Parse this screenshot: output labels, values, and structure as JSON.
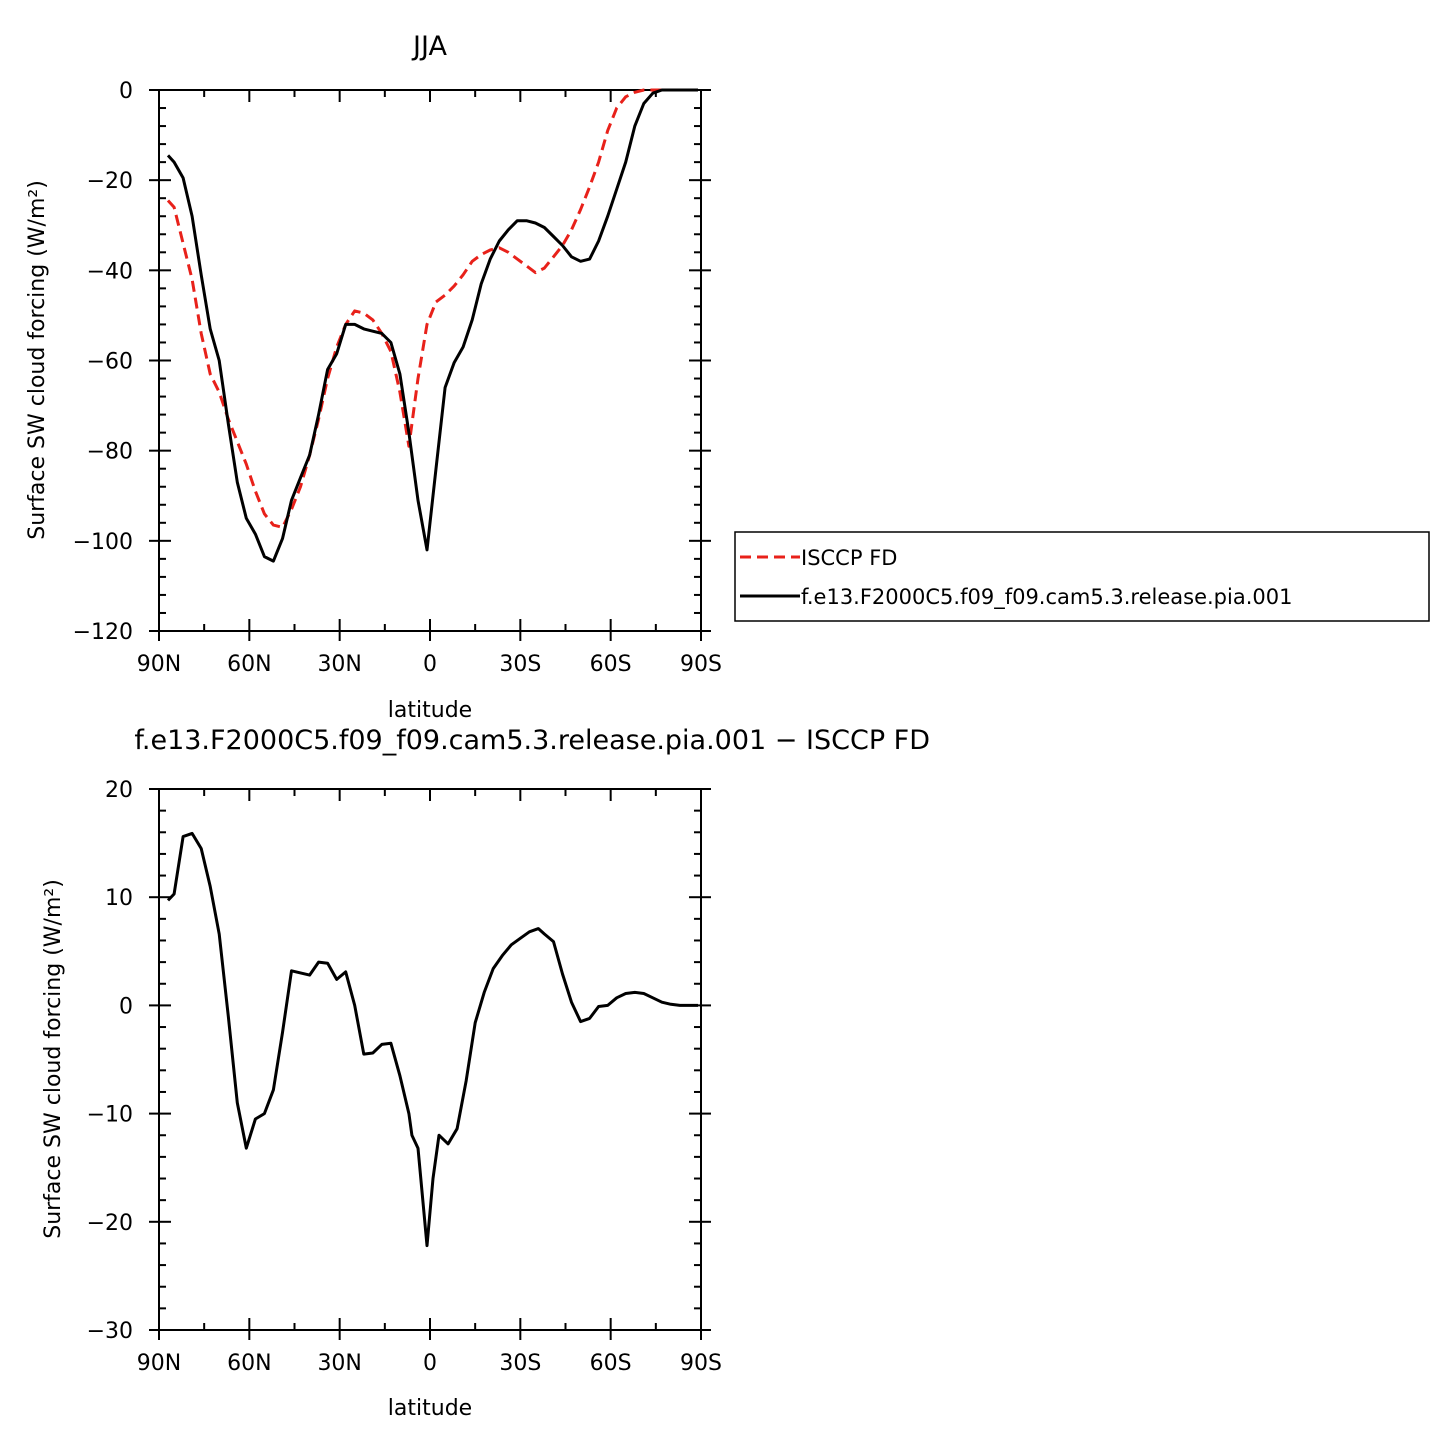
{
  "chart_data": [
    {
      "type": "line",
      "title": "JJA",
      "xlabel": "latitude",
      "ylabel": "Surface SW cloud forcing (W/m²)",
      "xlim": [
        90,
        -90
      ],
      "ylim": [
        -120,
        0
      ],
      "x_ticks": [
        90,
        60,
        30,
        0,
        -30,
        -60,
        -90
      ],
      "x_tick_labels": [
        "90N",
        "60N",
        "30N",
        "0",
        "30S",
        "60S",
        "90S"
      ],
      "y_ticks": [
        0,
        -20,
        -40,
        -60,
        -80,
        -100,
        -120
      ],
      "y_tick_labels": [
        "0",
        "−20",
        "−40",
        "−60",
        "−80",
        "−100",
        "−120"
      ],
      "legend": "outside-right",
      "series": [
        {
          "name": "ISCCP FD",
          "color": "#e8211a",
          "dash": "dashed",
          "x": [
            87,
            85,
            82,
            79,
            76,
            73,
            70,
            67,
            64,
            61,
            58,
            55,
            52,
            49,
            46,
            43,
            40,
            37,
            34,
            31,
            28,
            25,
            22,
            19,
            16,
            13,
            10,
            7,
            4,
            1,
            -2,
            -5,
            -8,
            -11,
            -14,
            -17,
            -20,
            -23,
            -26,
            -29,
            -32,
            -35,
            -38,
            -41,
            -44,
            -47,
            -50,
            -53,
            -56,
            -59,
            -62,
            -65,
            -68,
            -71,
            -74,
            -77,
            -80,
            -83,
            -86,
            -89
          ],
          "y": [
            -24.5,
            -26,
            -34,
            -42,
            -54,
            -63,
            -67,
            -73,
            -78,
            -83,
            -89,
            -94,
            -96.5,
            -97,
            -93,
            -88,
            -81,
            -73,
            -64,
            -57,
            -52,
            -49,
            -49.5,
            -51,
            -54,
            -58,
            -67,
            -79,
            -64,
            -52,
            -47,
            -45.5,
            -43.5,
            -41,
            -38,
            -36.5,
            -35.5,
            -35,
            -36,
            -37.5,
            -39,
            -40.5,
            -39.5,
            -37,
            -34.5,
            -31,
            -26.5,
            -21.5,
            -16,
            -9,
            -4,
            -1.5,
            -0.5,
            0,
            0,
            0,
            0,
            0,
            0,
            0
          ]
        },
        {
          "name": "f.e13.F2000C5.f09_f09.cam5.3.release.pia.001",
          "color": "#000000",
          "dash": "solid",
          "x": [
            87,
            85,
            82,
            79,
            76,
            73,
            70,
            67,
            64,
            61,
            58,
            55,
            52,
            49,
            46,
            43,
            40,
            37,
            34,
            31,
            28,
            25,
            22,
            19,
            16,
            13,
            10,
            7,
            4,
            1,
            -2,
            -5,
            -8,
            -11,
            -14,
            -17,
            -20,
            -23,
            -26,
            -29,
            -32,
            -35,
            -38,
            -41,
            -44,
            -47,
            -50,
            -53,
            -56,
            -59,
            -62,
            -65,
            -68,
            -71,
            -74,
            -77,
            -80,
            -83,
            -86,
            -89
          ],
          "y": [
            -14.5,
            -16,
            -19.5,
            -28,
            -41,
            -53,
            -60,
            -74,
            -87,
            -95,
            -98.5,
            -103.5,
            -104.5,
            -99.5,
            -91,
            -86,
            -81,
            -72,
            -62,
            -58.5,
            -52,
            -52,
            -53,
            -53.5,
            -54,
            -56,
            -63,
            -76,
            -91,
            -102,
            -84,
            -66,
            -60.5,
            -57,
            -51,
            -43,
            -37.5,
            -33.5,
            -31,
            -29,
            -29,
            -29.5,
            -30.5,
            -32.5,
            -34.5,
            -37,
            -38,
            -37.5,
            -33.5,
            -28,
            -22,
            -16,
            -8,
            -3,
            -0.7,
            0,
            0,
            0,
            0,
            0
          ]
        }
      ]
    },
    {
      "type": "line",
      "title": "f.e13.F2000C5.f09_f09.cam5.3.release.pia.001 − ISCCP FD",
      "xlabel": "latitude",
      "ylabel": "Surface SW cloud forcing (W/m²)",
      "xlim": [
        90,
        -90
      ],
      "ylim": [
        -30,
        20
      ],
      "x_ticks": [
        90,
        60,
        30,
        0,
        -30,
        -60,
        -90
      ],
      "x_tick_labels": [
        "90N",
        "60N",
        "30N",
        "0",
        "30S",
        "60S",
        "90S"
      ],
      "y_ticks": [
        20,
        10,
        0,
        -10,
        -20,
        -30
      ],
      "y_tick_labels": [
        "20",
        "10",
        "0",
        "−10",
        "−20",
        "−30"
      ],
      "series": [
        {
          "color": "#000000",
          "dash": "solid",
          "x": [
            87,
            85,
            82,
            79,
            76,
            73,
            70,
            67,
            64,
            61,
            58,
            55,
            52,
            49,
            46,
            43,
            40,
            37,
            34,
            31,
            28,
            25,
            22,
            19,
            16,
            13,
            10,
            7,
            6,
            4,
            1,
            -1,
            -3,
            -6,
            -9,
            -12,
            -15,
            -18,
            -21,
            -24,
            -27,
            -30,
            -33,
            -36,
            -38,
            -41,
            -44,
            -47,
            -50,
            -53,
            -56,
            -59,
            -62,
            -65,
            -68,
            -71,
            -74,
            -77,
            -80,
            -83,
            -86,
            -89
          ],
          "y": [
            9.7,
            10.3,
            15.6,
            15.9,
            14.5,
            11,
            6.6,
            -1,
            -9,
            -13.2,
            -10.5,
            -10,
            -7.8,
            -2.5,
            3.2,
            3,
            2.8,
            4,
            3.9,
            2.4,
            3.1,
            0,
            -4.5,
            -4.4,
            -3.6,
            -3.5,
            -6.5,
            -10,
            -12,
            -13.2,
            -22.2,
            -16,
            -12,
            -12.8,
            -11.4,
            -7,
            -1.6,
            1.2,
            3.4,
            4.6,
            5.6,
            6.2,
            6.8,
            7.1,
            6.6,
            5.9,
            2.9,
            0.3,
            -1.5,
            -1.2,
            -0.1,
            0,
            0.7,
            1.1,
            1.2,
            1.1,
            0.7,
            0.3,
            0.1,
            0,
            0,
            0
          ]
        }
      ]
    }
  ]
}
